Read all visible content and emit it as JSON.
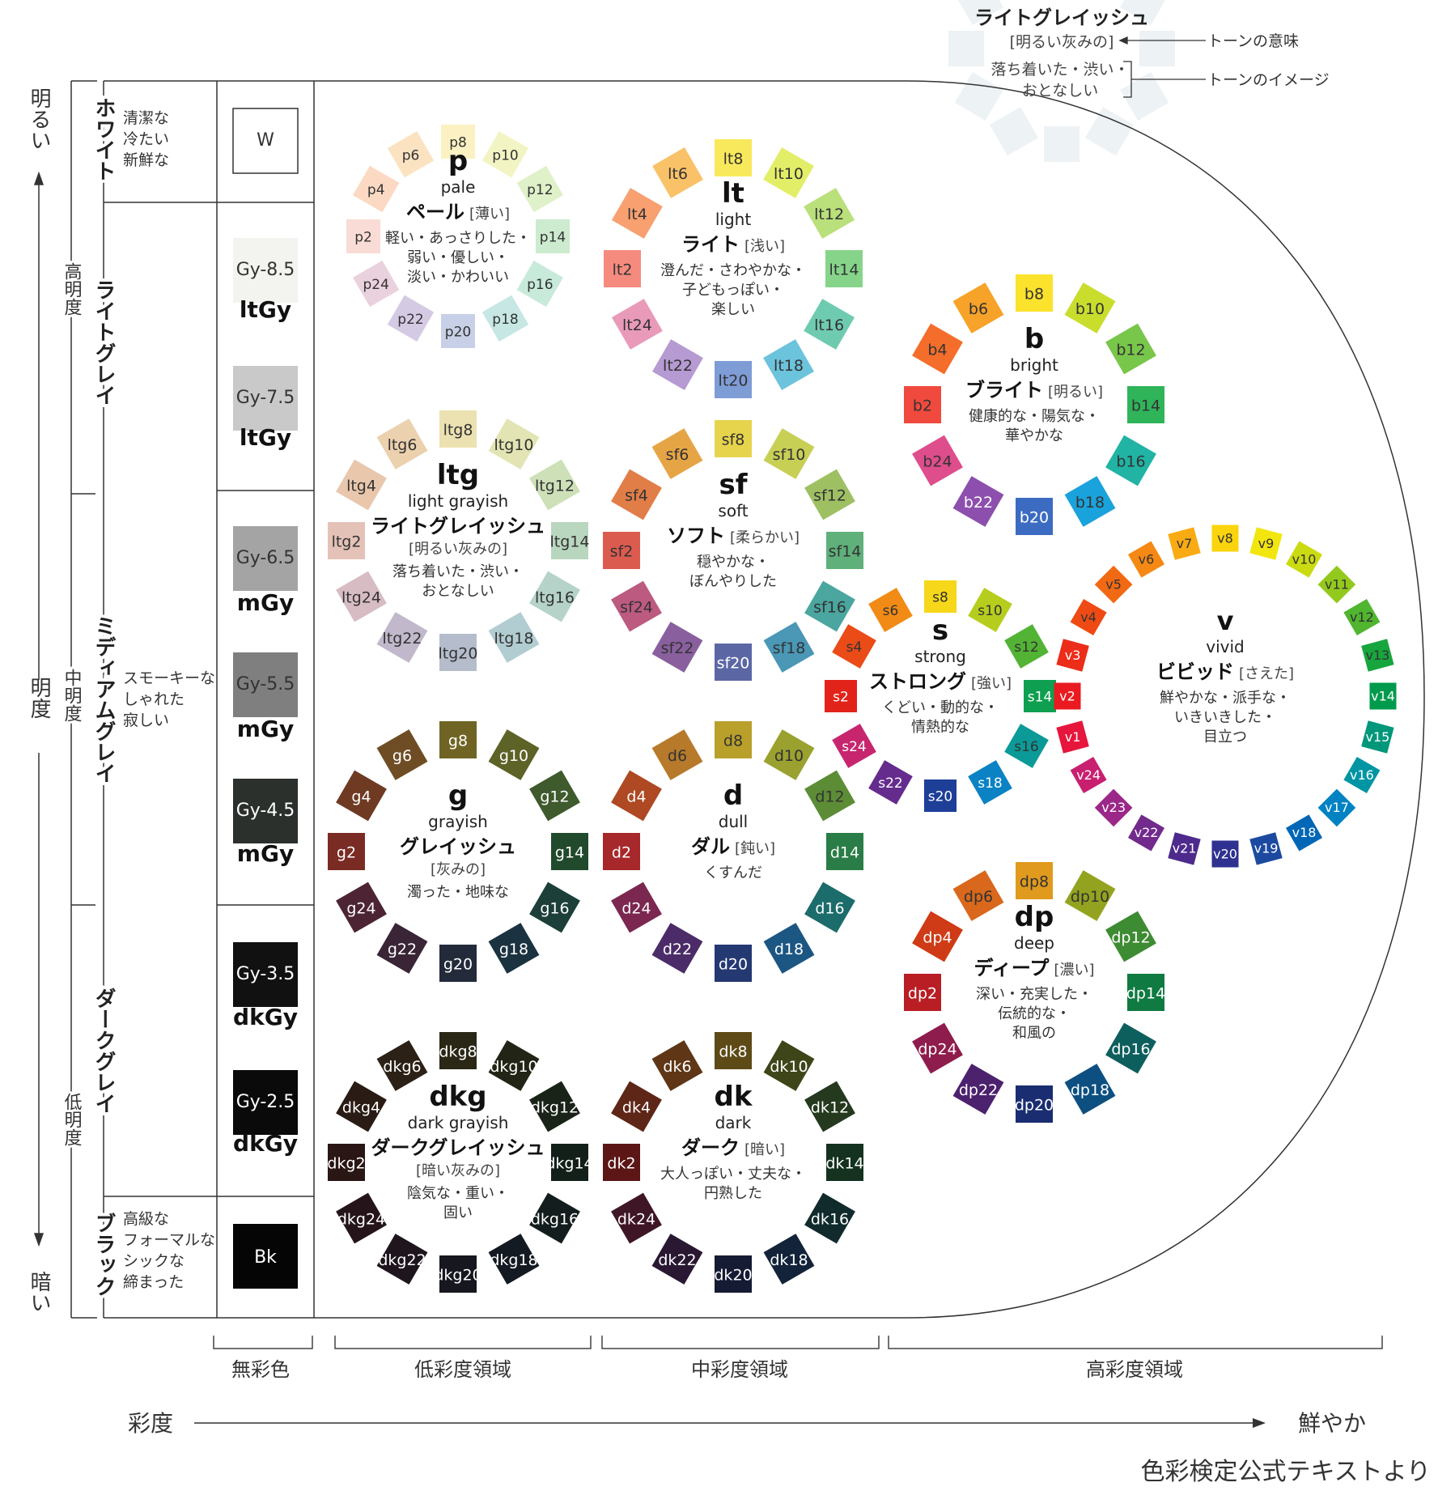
{
  "legend_sample": {
    "title": "ライトグレイッシュ",
    "meaning": "[明るい灰みの]",
    "image": "落ち着いた・渋い・",
    "image2": "おとなしい",
    "meaning_label": "トーンの意味",
    "image_label": "トーンのイメージ"
  },
  "lightness_axis": {
    "bright": "明るい",
    "dark": "暗い",
    "mid": "明度",
    "high": "高明度",
    "middle": "中明度",
    "low": "低明度"
  },
  "achromatic": [
    {
      "group": "ホワイト",
      "desc": [
        "清潔な",
        "冷たい",
        "新鮮な"
      ],
      "chips": [
        {
          "code": "W",
          "tone": "",
          "color": "#ffffff"
        }
      ]
    },
    {
      "group": "ライトグレイ",
      "desc": [],
      "chips": [
        {
          "code": "Gy-8.5",
          "tone": "ltGy",
          "color": "#f3f3ef"
        },
        {
          "code": "Gy-7.5",
          "tone": "ltGy",
          "color": "#c9c9c9"
        }
      ]
    },
    {
      "group": "ミディアムグレイ",
      "desc": [
        "スモーキーな",
        "しゃれた",
        "寂しい"
      ],
      "chips": [
        {
          "code": "Gy-6.5",
          "tone": "mGy",
          "color": "#a4a4a4"
        },
        {
          "code": "Gy-5.5",
          "tone": "mGy",
          "color": "#7f7f7f"
        },
        {
          "code": "Gy-4.5",
          "tone": "mGy",
          "color": "#2b302c"
        }
      ]
    },
    {
      "group": "ダークグレイ",
      "desc": [],
      "chips": [
        {
          "code": "Gy-3.5",
          "tone": "dkGy",
          "color": "#111111"
        },
        {
          "code": "Gy-2.5",
          "tone": "dkGy",
          "color": "#0a0a0a"
        }
      ]
    },
    {
      "group": "ブラック",
      "desc": [
        "高級な",
        "フォーマルな",
        "シックな",
        "締まった"
      ],
      "chips": [
        {
          "code": "Bk",
          "tone": "",
          "color": "#050505"
        }
      ]
    }
  ],
  "tones": [
    {
      "id": "p",
      "abbr": "p",
      "en": "pale",
      "jp": "ペール",
      "meaning": "[薄い]",
      "images": [
        "軽い・あっさりした・",
        "弱い・優しい・",
        "淡い・かわいい"
      ],
      "chips": [
        {
          "code": "p2",
          "color": "#f9dcd5"
        },
        {
          "code": "p4",
          "color": "#fbd9c3"
        },
        {
          "code": "p6",
          "color": "#fbe3c2"
        },
        {
          "code": "p8",
          "color": "#fbf1c3"
        },
        {
          "code": "p10",
          "color": "#f2f5c3"
        },
        {
          "code": "p12",
          "color": "#dff1c8"
        },
        {
          "code": "p14",
          "color": "#cdebcf"
        },
        {
          "code": "p16",
          "color": "#c8eadb"
        },
        {
          "code": "p18",
          "color": "#c6e7e4"
        },
        {
          "code": "p20",
          "color": "#c7d0e6"
        },
        {
          "code": "p22",
          "color": "#d5cae4"
        },
        {
          "code": "p24",
          "color": "#ead1de"
        }
      ]
    },
    {
      "id": "lt",
      "abbr": "lt",
      "en": "light",
      "jp": "ライト",
      "meaning": "[浅い]",
      "images": [
        "澄んだ・さわやかな・",
        "子どもっぽい・",
        "楽しい"
      ],
      "chips": [
        {
          "code": "lt2",
          "color": "#f58b7e"
        },
        {
          "code": "lt4",
          "color": "#f8a070"
        },
        {
          "code": "lt6",
          "color": "#f9c268"
        },
        {
          "code": "lt8",
          "color": "#f8e95c"
        },
        {
          "code": "lt10",
          "color": "#e3ee68"
        },
        {
          "code": "lt12",
          "color": "#b9e07a"
        },
        {
          "code": "lt14",
          "color": "#86d48a"
        },
        {
          "code": "lt16",
          "color": "#6fcbb0"
        },
        {
          "code": "lt18",
          "color": "#6cc3dc"
        },
        {
          "code": "lt20",
          "color": "#7e9cd6"
        },
        {
          "code": "lt22",
          "color": "#b69ad2"
        },
        {
          "code": "lt24",
          "color": "#e99ab9"
        }
      ]
    },
    {
      "id": "b",
      "abbr": "b",
      "en": "bright",
      "jp": "ブライト",
      "meaning": "[明るい]",
      "images": [
        "健康的な・陽気な・",
        "華やかな"
      ],
      "chips": [
        {
          "code": "b2",
          "color": "#ef4a3d"
        },
        {
          "code": "b4",
          "color": "#f46d2b"
        },
        {
          "code": "b6",
          "color": "#f7a228"
        },
        {
          "code": "b8",
          "color": "#fbe22c"
        },
        {
          "code": "b10",
          "color": "#c9dd2d"
        },
        {
          "code": "b12",
          "color": "#78c64a"
        },
        {
          "code": "b14",
          "color": "#2fb45a"
        },
        {
          "code": "b16",
          "color": "#21b3a4"
        },
        {
          "code": "b18",
          "color": "#1aa2dc"
        },
        {
          "code": "b20",
          "color": "#3c6cc1"
        },
        {
          "code": "b22",
          "color": "#8d4fae"
        },
        {
          "code": "b24",
          "color": "#de4d8c"
        }
      ]
    },
    {
      "id": "ltg",
      "abbr": "ltg",
      "en": "light grayish",
      "jp": "ライトグレイッシュ",
      "meaning": "[明るい灰みの]",
      "images": [
        "落ち着いた・渋い・",
        "おとなしい"
      ],
      "chips": [
        {
          "code": "ltg2",
          "color": "#e4c2b8"
        },
        {
          "code": "ltg4",
          "color": "#e9c7ad"
        },
        {
          "code": "ltg6",
          "color": "#ecd1ae"
        },
        {
          "code": "ltg8",
          "color": "#ece2b1"
        },
        {
          "code": "ltg10",
          "color": "#e2e5b3"
        },
        {
          "code": "ltg12",
          "color": "#cde0b7"
        },
        {
          "code": "ltg14",
          "color": "#b9d6bf"
        },
        {
          "code": "ltg16",
          "color": "#b5d3c8"
        },
        {
          "code": "ltg18",
          "color": "#b2cdd1"
        },
        {
          "code": "ltg20",
          "color": "#b5bdcc"
        },
        {
          "code": "ltg22",
          "color": "#c2b8cb"
        },
        {
          "code": "ltg24",
          "color": "#d7bcc4"
        }
      ]
    },
    {
      "id": "sf",
      "abbr": "sf",
      "en": "soft",
      "jp": "ソフト",
      "meaning": "[柔らかい]",
      "images": [
        "穏やかな・",
        "ぼんやりした"
      ],
      "chips": [
        {
          "code": "sf2",
          "color": "#dc5b4f"
        },
        {
          "code": "sf4",
          "color": "#e17d47"
        },
        {
          "code": "sf6",
          "color": "#e6a545"
        },
        {
          "code": "sf8",
          "color": "#e6d44c"
        },
        {
          "code": "sf10",
          "color": "#c8cf55"
        },
        {
          "code": "sf12",
          "color": "#9ec063"
        },
        {
          "code": "sf14",
          "color": "#5fb07b"
        },
        {
          "code": "sf16",
          "color": "#4aa69e"
        },
        {
          "code": "sf18",
          "color": "#4a97b6"
        },
        {
          "code": "sf20",
          "color": "#5b67a5"
        },
        {
          "code": "sf22",
          "color": "#8a5f9e"
        },
        {
          "code": "sf24",
          "color": "#bc5a80"
        }
      ]
    },
    {
      "id": "s",
      "abbr": "s",
      "en": "strong",
      "jp": "ストロング",
      "meaning": "[強い]",
      "images": [
        "くどい・動的な・",
        "情熱的な"
      ],
      "chips": [
        {
          "code": "s2",
          "color": "#e2231a"
        },
        {
          "code": "s4",
          "color": "#ea4b17"
        },
        {
          "code": "s6",
          "color": "#f18b15"
        },
        {
          "code": "s8",
          "color": "#f6d71a"
        },
        {
          "code": "s10",
          "color": "#b7cd1d"
        },
        {
          "code": "s12",
          "color": "#52b335"
        },
        {
          "code": "s14",
          "color": "#0ea050"
        },
        {
          "code": "s16",
          "color": "#0b9a97"
        },
        {
          "code": "s18",
          "color": "#0a82c3"
        },
        {
          "code": "s20",
          "color": "#1d3f98"
        },
        {
          "code": "s22",
          "color": "#652c8e"
        },
        {
          "code": "s24",
          "color": "#c7266f"
        }
      ]
    },
    {
      "id": "v",
      "abbr": "v",
      "en": "vivid",
      "jp": "ビビッド",
      "meaning": "[さえた]",
      "images": [
        "鮮やかな・派手な・",
        "いきいきした・",
        "目立つ"
      ],
      "chips": [
        {
          "code": "v1",
          "color": "#e7163d"
        },
        {
          "code": "v2",
          "color": "#ea1a21"
        },
        {
          "code": "v3",
          "color": "#ec2d19"
        },
        {
          "code": "v4",
          "color": "#ef4a14"
        },
        {
          "code": "v5",
          "color": "#f26913"
        },
        {
          "code": "v6",
          "color": "#f58914"
        },
        {
          "code": "v7",
          "color": "#f8ab12"
        },
        {
          "code": "v8",
          "color": "#fbd40e"
        },
        {
          "code": "v9",
          "color": "#f2e60f"
        },
        {
          "code": "v10",
          "color": "#cbdb12"
        },
        {
          "code": "v11",
          "color": "#93c91c"
        },
        {
          "code": "v12",
          "color": "#50b52f"
        },
        {
          "code": "v13",
          "color": "#17a63e"
        },
        {
          "code": "v14",
          "color": "#009a4d"
        },
        {
          "code": "v15",
          "color": "#00977a"
        },
        {
          "code": "v16",
          "color": "#0095a3"
        },
        {
          "code": "v17",
          "color": "#0082c3"
        },
        {
          "code": "v18",
          "color": "#0067b6"
        },
        {
          "code": "v19",
          "color": "#1c4aa0"
        },
        {
          "code": "v20",
          "color": "#2e3190"
        },
        {
          "code": "v21",
          "color": "#4d2a8c"
        },
        {
          "code": "v22",
          "color": "#722a8d"
        },
        {
          "code": "v23",
          "color": "#9b2789"
        },
        {
          "code": "v24",
          "color": "#c81f70"
        }
      ]
    },
    {
      "id": "g",
      "abbr": "g",
      "en": "grayish",
      "jp": "グレイッシュ",
      "meaning": "[灰みの]",
      "images": [
        "濁った・地味な"
      ],
      "chips": [
        {
          "code": "g2",
          "color": "#7a2b24"
        },
        {
          "code": "g4",
          "color": "#6e3a22"
        },
        {
          "code": "g6",
          "color": "#6f4d24"
        },
        {
          "code": "g8",
          "color": "#6f6423"
        },
        {
          "code": "g10",
          "color": "#5d6226"
        },
        {
          "code": "g12",
          "color": "#3f5a2c"
        },
        {
          "code": "g14",
          "color": "#214a2c"
        },
        {
          "code": "g16",
          "color": "#1c3f3a"
        },
        {
          "code": "g18",
          "color": "#1b3240"
        },
        {
          "code": "g20",
          "color": "#232a3a"
        },
        {
          "code": "g22",
          "color": "#3a2537"
        },
        {
          "code": "g24",
          "color": "#4d2433"
        }
      ]
    },
    {
      "id": "d",
      "abbr": "d",
      "en": "dull",
      "jp": "ダル",
      "meaning": "[鈍い]",
      "images": [
        "くすんだ"
      ],
      "chips": [
        {
          "code": "d2",
          "color": "#a7282a"
        },
        {
          "code": "d4",
          "color": "#ae4923"
        },
        {
          "code": "d6",
          "color": "#b7792a"
        },
        {
          "code": "d8",
          "color": "#b9a02b"
        },
        {
          "code": "d10",
          "color": "#9aa12e"
        },
        {
          "code": "d12",
          "color": "#5c8d36"
        },
        {
          "code": "d14",
          "color": "#2a7d46"
        },
        {
          "code": "d16",
          "color": "#1b6c6b"
        },
        {
          "code": "d18",
          "color": "#1c5683"
        },
        {
          "code": "d20",
          "color": "#243872"
        },
        {
          "code": "d22",
          "color": "#4b2c68"
        },
        {
          "code": "d24",
          "color": "#7b2750"
        }
      ]
    },
    {
      "id": "dp",
      "abbr": "dp",
      "en": "deep",
      "jp": "ディープ",
      "meaning": "[濃い]",
      "images": [
        "深い・充実した・",
        "伝統的な・",
        "和風の"
      ],
      "chips": [
        {
          "code": "dp2",
          "color": "#b91e25"
        },
        {
          "code": "dp4",
          "color": "#cf3b16"
        },
        {
          "code": "dp6",
          "color": "#d9681c"
        },
        {
          "code": "dp8",
          "color": "#e09a1d"
        },
        {
          "code": "dp10",
          "color": "#93a31f"
        },
        {
          "code": "dp12",
          "color": "#3d8b32"
        },
        {
          "code": "dp14",
          "color": "#0f7a41"
        },
        {
          "code": "dp16",
          "color": "#0d5f5e"
        },
        {
          "code": "dp18",
          "color": "#0d4f80"
        },
        {
          "code": "dp20",
          "color": "#1a2d70"
        },
        {
          "code": "dp22",
          "color": "#4c216e"
        },
        {
          "code": "dp24",
          "color": "#8e1c4c"
        }
      ]
    },
    {
      "id": "dkg",
      "abbr": "dkg",
      "en": "dark grayish",
      "jp": "ダークグレイッシュ",
      "meaning": "[暗い灰みの]",
      "images": [
        "陰気な・重い・",
        "固い"
      ],
      "chips": [
        {
          "code": "dkg2",
          "color": "#2a1615"
        },
        {
          "code": "dkg4",
          "color": "#2a1b14"
        },
        {
          "code": "dkg6",
          "color": "#2b2116"
        },
        {
          "code": "dkg8",
          "color": "#2a2716"
        },
        {
          "code": "dkg10",
          "color": "#222515"
        },
        {
          "code": "dkg12",
          "color": "#1a2318"
        },
        {
          "code": "dkg14",
          "color": "#13201a"
        },
        {
          "code": "dkg16",
          "color": "#131d1d"
        },
        {
          "code": "dkg18",
          "color": "#141a21"
        },
        {
          "code": "dkg20",
          "color": "#16171f"
        },
        {
          "code": "dkg22",
          "color": "#1e151d"
        },
        {
          "code": "dkg24",
          "color": "#25151a"
        }
      ]
    },
    {
      "id": "dk",
      "abbr": "dk",
      "en": "dark",
      "jp": "ダーク",
      "meaning": "[暗い]",
      "images": [
        "大人っぽい・丈夫な・",
        "円熟した"
      ],
      "chips": [
        {
          "code": "dk2",
          "color": "#5c1616"
        },
        {
          "code": "dk4",
          "color": "#5e2616"
        },
        {
          "code": "dk6",
          "color": "#5f3616"
        },
        {
          "code": "dk8",
          "color": "#5d4a17"
        },
        {
          "code": "dk10",
          "color": "#3e4519"
        },
        {
          "code": "dk12",
          "color": "#24391d"
        },
        {
          "code": "dk14",
          "color": "#14321f"
        },
        {
          "code": "dk16",
          "color": "#112b2c"
        },
        {
          "code": "dk18",
          "color": "#12233a"
        },
        {
          "code": "dk20",
          "color": "#161b34"
        },
        {
          "code": "dk22",
          "color": "#2a1833"
        },
        {
          "code": "dk24",
          "color": "#3f1626"
        }
      ]
    }
  ],
  "saturation_regions": [
    "無彩色",
    "低彩度領域",
    "中彩度領域",
    "高彩度領域"
  ],
  "saturation_axis": {
    "label": "彩度",
    "end": "鮮やか"
  },
  "footer": "色彩検定公式テキストより"
}
